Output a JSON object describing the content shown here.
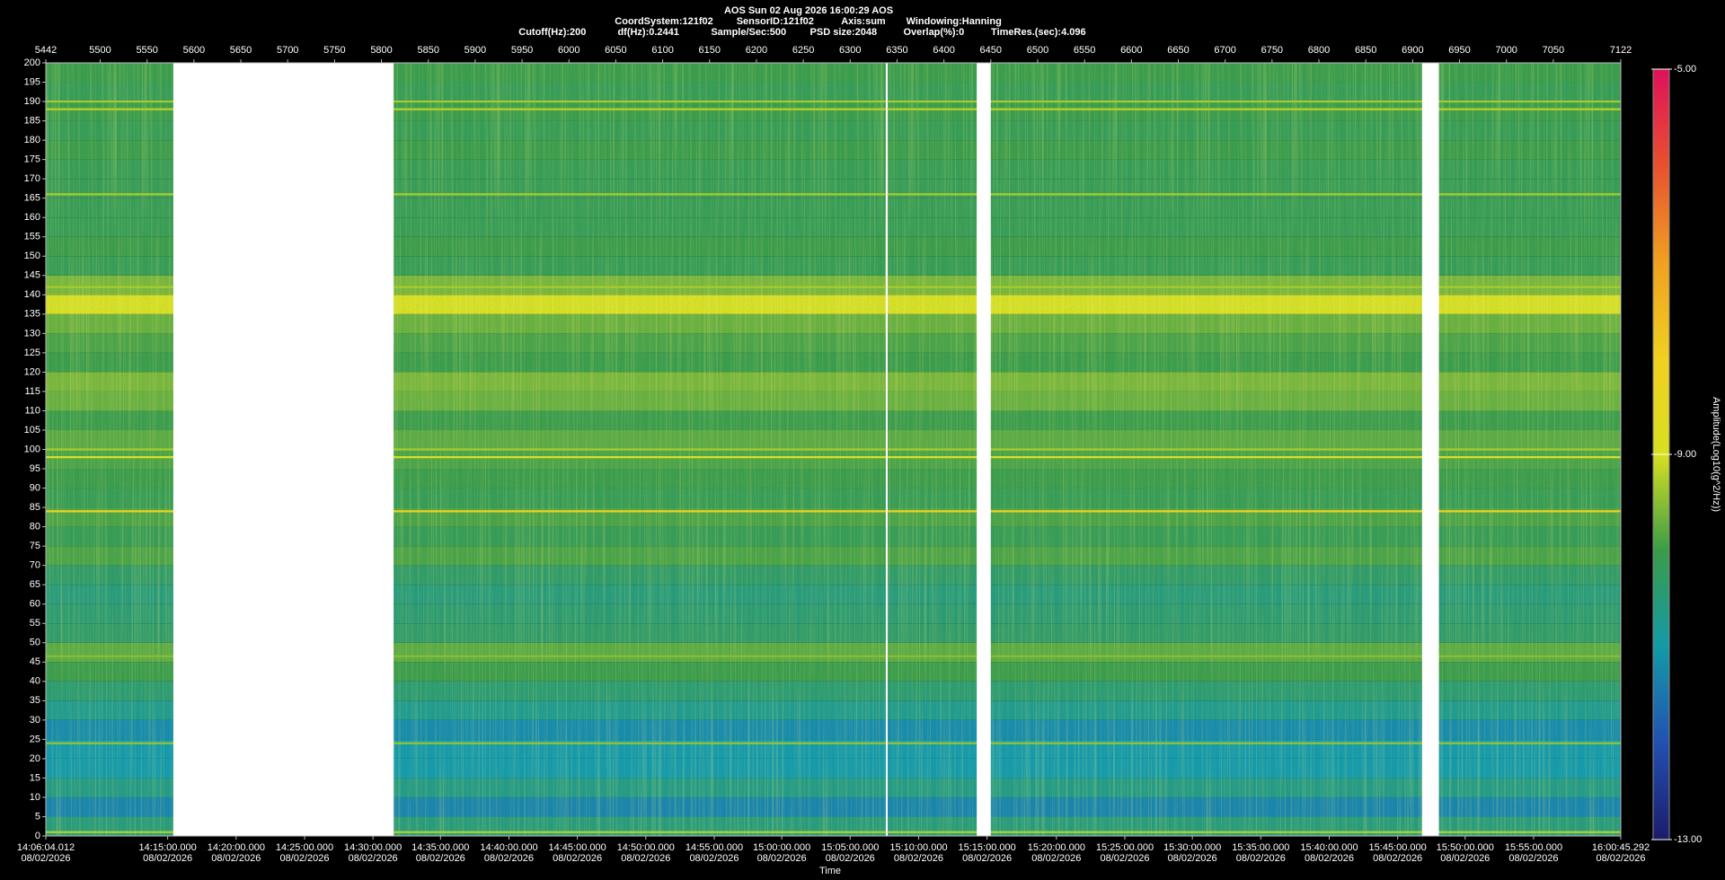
{
  "chart_data": {
    "type": "spectrogram",
    "title": "AOS  Sun 02 Aug 2026 16:00:29  AOS",
    "info_lines": [
      [
        "CoordSystem:121f02",
        "SensorID:121f02",
        "Axis:sum",
        "Windowing:Hanning"
      ],
      [
        "Cutoff(Hz):200",
        "df(Hz):0.2441",
        "Sample/Sec:500",
        "PSD size:2048",
        "Overlap(%):0",
        "TimeRes.(sec):4.096"
      ]
    ],
    "xlabel": "Time",
    "colorbar_label": "Amplitude(Log10(g^2/Hz))",
    "xlim": [
      5442,
      7122
    ],
    "xticks": [
      5442,
      5500,
      5550,
      5600,
      5650,
      5700,
      5750,
      5800,
      5850,
      5900,
      5950,
      6000,
      6050,
      6100,
      6150,
      6200,
      6250,
      6300,
      6350,
      6400,
      6450,
      6500,
      6550,
      6600,
      6650,
      6700,
      6750,
      6800,
      6850,
      6900,
      6950,
      7000,
      7050,
      7122
    ],
    "time_ticks": [
      {
        "value": 5442,
        "label": "14:06:04.012",
        "date": "08/02/2026"
      },
      {
        "value": 5572,
        "label": "14:15:00.000",
        "date": "08/02/2026"
      },
      {
        "value": 5645,
        "label": "14:20:00.000",
        "date": "08/02/2026"
      },
      {
        "value": 5718,
        "label": "14:25:00.000",
        "date": "08/02/2026"
      },
      {
        "value": 5791,
        "label": "14:30:00.000",
        "date": "08/02/2026"
      },
      {
        "value": 5863,
        "label": "14:35:00.000",
        "date": "08/02/2026"
      },
      {
        "value": 5936,
        "label": "14:40:00.000",
        "date": "08/02/2026"
      },
      {
        "value": 6009,
        "label": "14:45:00.000",
        "date": "08/02/2026"
      },
      {
        "value": 6082,
        "label": "14:50:00.000",
        "date": "08/02/2026"
      },
      {
        "value": 6155,
        "label": "14:55:00.000",
        "date": "08/02/2026"
      },
      {
        "value": 6227,
        "label": "15:00:00.000",
        "date": "08/02/2026"
      },
      {
        "value": 6300,
        "label": "15:05:00.000",
        "date": "08/02/2026"
      },
      {
        "value": 6373,
        "label": "15:10:00.000",
        "date": "08/02/2026"
      },
      {
        "value": 6446,
        "label": "15:15:00.000",
        "date": "08/02/2026"
      },
      {
        "value": 6520,
        "label": "15:20:00.000",
        "date": "08/02/2026"
      },
      {
        "value": 6593,
        "label": "15:25:00.000",
        "date": "08/02/2026"
      },
      {
        "value": 6665,
        "label": "15:30:00.000",
        "date": "08/02/2026"
      },
      {
        "value": 6738,
        "label": "15:35:00.000",
        "date": "08/02/2026"
      },
      {
        "value": 6811,
        "label": "15:40:00.000",
        "date": "08/02/2026"
      },
      {
        "value": 6884,
        "label": "15:45:00.000",
        "date": "08/02/2026"
      },
      {
        "value": 6956,
        "label": "15:50:00.000",
        "date": "08/02/2026"
      },
      {
        "value": 7029,
        "label": "15:55:00.000",
        "date": "08/02/2026"
      },
      {
        "value": 7122,
        "label": "16:00:45.292",
        "date": "08/02/2026"
      }
    ],
    "ylim": [
      0,
      200
    ],
    "yticks": [
      0,
      5,
      10,
      15,
      20,
      25,
      30,
      35,
      40,
      45,
      50,
      55,
      60,
      65,
      70,
      75,
      80,
      85,
      90,
      95,
      100,
      105,
      110,
      115,
      120,
      125,
      130,
      135,
      140,
      145,
      150,
      155,
      160,
      165,
      170,
      175,
      180,
      185,
      190,
      195,
      200
    ],
    "clim": [
      -13,
      -5
    ],
    "colorticks": [
      {
        "value": -5,
        "label": "-5.00"
      },
      {
        "value": -9,
        "label": "-9.00"
      },
      {
        "value": -13,
        "label": "-13.00"
      }
    ],
    "colormap": [
      "#1c1c6a",
      "#2250b0",
      "#149aa8",
      "#3a9c48",
      "#d8e020",
      "#f0d020",
      "#f0a020",
      "#e85030",
      "#e0105a"
    ],
    "band_edges_hz": [
      0,
      5,
      10,
      15,
      20,
      25,
      30,
      35,
      40,
      45,
      50,
      55,
      60,
      65,
      70,
      75,
      80,
      85,
      90,
      95,
      100,
      105,
      110,
      115,
      120,
      125,
      130,
      135,
      140,
      145,
      150,
      155,
      160,
      165,
      170,
      175,
      180,
      185,
      190,
      195,
      200
    ],
    "band_values": [
      -10.5,
      -11.3,
      -10.6,
      -11.0,
      -11.0,
      -11.2,
      -10.7,
      -10.4,
      -10.0,
      -9.8,
      -10.3,
      -10.4,
      -10.5,
      -10.3,
      -9.9,
      -10.1,
      -9.9,
      -10.1,
      -10.0,
      -9.9,
      -9.8,
      -10.0,
      -9.7,
      -9.6,
      -10.0,
      -9.9,
      -9.7,
      -9.0,
      -9.6,
      -10.1,
      -10.0,
      -10.1,
      -10.1,
      -10.1,
      -10.1,
      -10.0,
      -10.1,
      -10.0,
      -10.1,
      -10.0
    ],
    "tones_hz": [
      1,
      24,
      46.5,
      84,
      98,
      100,
      142,
      166,
      188,
      190
    ],
    "tone_values": [
      -9.2,
      -9.4,
      -9.5,
      -8.2,
      -9.0,
      -9.3,
      -9.3,
      -9.3,
      -9.2,
      -9.3
    ],
    "gaps": [
      [
        5578,
        5813
      ],
      [
        6338,
        6340
      ],
      [
        6435,
        6450
      ],
      [
        6910,
        6928
      ]
    ]
  }
}
